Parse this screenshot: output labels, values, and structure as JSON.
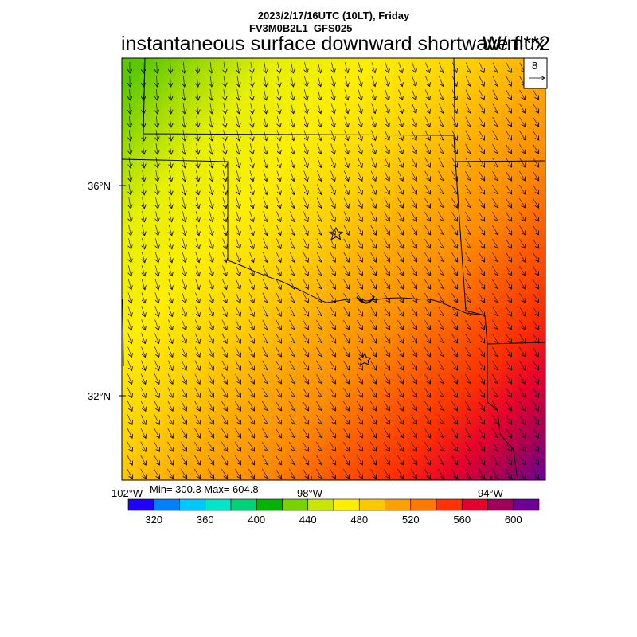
{
  "header": {
    "date_line": "2023/2/17/16UTC (10LT), Friday",
    "model_line": "FV3M0B2L1_GFS025",
    "title": "instantaneous surface downward shortwave flux",
    "units": "W/m**2"
  },
  "reference_vector": {
    "label": "8"
  },
  "axes": {
    "lat_labels": [
      "36°N",
      "32°N"
    ],
    "lon_labels": [
      "102°W",
      "98°W",
      "94°W"
    ]
  },
  "stats": {
    "text": "Min= 300.3 Max= 604.8",
    "min": 300.3,
    "max": 604.8
  },
  "colorbar": {
    "labels": [
      "320",
      "360",
      "400",
      "440",
      "480",
      "520",
      "560",
      "600"
    ],
    "levels": [
      320,
      340,
      360,
      380,
      400,
      420,
      440,
      460,
      480,
      500,
      520,
      540,
      560,
      580,
      600
    ],
    "colors": [
      "#1e00ff",
      "#0080ff",
      "#00c8ff",
      "#00e6c8",
      "#00d278",
      "#00b400",
      "#78d200",
      "#c8e600",
      "#ffee00",
      "#ffc800",
      "#ffa000",
      "#ff7800",
      "#ff3200",
      "#e6002d",
      "#a0005a",
      "#6e0096"
    ]
  },
  "markers": [
    {
      "name": "oklahoma-city-star"
    },
    {
      "name": "dallas-star"
    }
  ]
}
